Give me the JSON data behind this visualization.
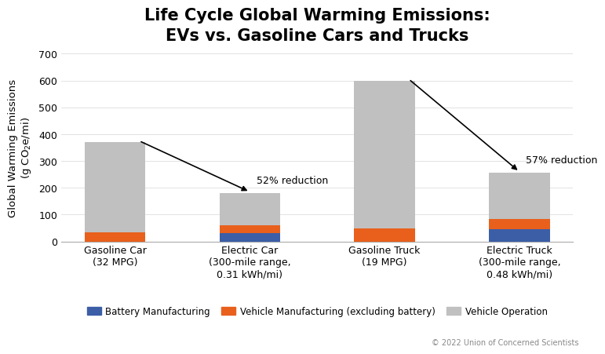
{
  "title_line1": "Life Cycle Global Warming Emissions:",
  "title_line2": "EVs vs. Gasoline Cars and Trucks",
  "ylabel": "Global Warming Emissions\n(g CO₂e/mi)",
  "categories": [
    "Gasoline Car\n(32 MPG)",
    "Electric Car\n(300-mile range,\n0.31 kWh/mi)",
    "Gasoline Truck\n(19 MPG)",
    "Electric Truck\n(300-mile range,\n0.48 kWh/mi)"
  ],
  "battery": [
    0,
    30,
    0,
    45
  ],
  "vehicle_mfg": [
    35,
    30,
    50,
    38
  ],
  "operation": [
    335,
    120,
    550,
    172
  ],
  "colors": {
    "battery": "#3b5ea6",
    "vehicle_mfg": "#e8601c",
    "operation": "#c0c0c0"
  },
  "ylim": [
    0,
    700
  ],
  "yticks": [
    0,
    100,
    200,
    300,
    400,
    500,
    600,
    700
  ],
  "annotations": [
    {
      "text": "52% reduction",
      "from_bar": 0,
      "to_bar": 1
    },
    {
      "text": "57% reduction",
      "from_bar": 2,
      "to_bar": 3
    }
  ],
  "legend_labels": [
    "Battery Manufacturing",
    "Vehicle Manufacturing (excluding battery)",
    "Vehicle Operation"
  ],
  "copyright": "© 2022 Union of Concerned Scientists",
  "background_color": "#ffffff",
  "title_fontsize": 15,
  "tick_fontsize": 9,
  "ylabel_fontsize": 9.5,
  "legend_fontsize": 8.5,
  "annot_fontsize": 9,
  "bar_width": 0.45
}
